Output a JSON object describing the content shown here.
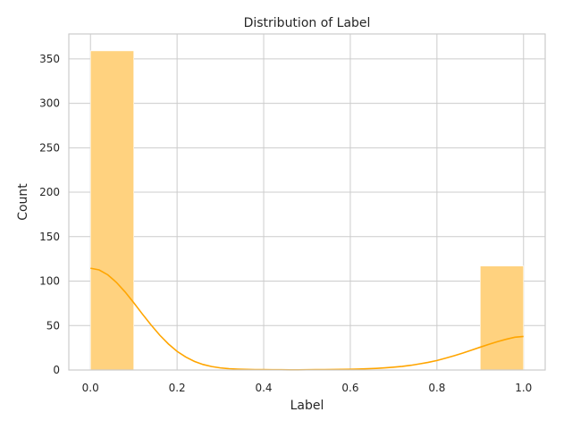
{
  "chart_data": {
    "type": "bar",
    "title": "Distribution of Label",
    "xlabel": "Label",
    "ylabel": "Count",
    "xlim": [
      -0.05,
      1.05
    ],
    "ylim": [
      0,
      378
    ],
    "x_ticks": [
      0.0,
      0.2,
      0.4,
      0.6,
      0.8,
      1.0
    ],
    "x_tick_labels": [
      "0.0",
      "0.2",
      "0.4",
      "0.6",
      "0.8",
      "1.0"
    ],
    "y_ticks": [
      0,
      50,
      100,
      150,
      200,
      250,
      300,
      350
    ],
    "y_tick_labels": [
      "0",
      "50",
      "100",
      "150",
      "200",
      "250",
      "300",
      "350"
    ],
    "grid": true,
    "bar_color": "#ffd27f",
    "line_color": "#ffa500",
    "bins": [
      {
        "x0": 0.0,
        "x1": 0.1,
        "count": 359
      },
      {
        "x0": 0.1,
        "x1": 0.2,
        "count": 0
      },
      {
        "x0": 0.2,
        "x1": 0.3,
        "count": 0
      },
      {
        "x0": 0.3,
        "x1": 0.4,
        "count": 0
      },
      {
        "x0": 0.4,
        "x1": 0.5,
        "count": 0
      },
      {
        "x0": 0.5,
        "x1": 0.6,
        "count": 0
      },
      {
        "x0": 0.6,
        "x1": 0.7,
        "count": 0
      },
      {
        "x0": 0.7,
        "x1": 0.8,
        "count": 0
      },
      {
        "x0": 0.8,
        "x1": 0.9,
        "count": 0
      },
      {
        "x0": 0.9,
        "x1": 1.0,
        "count": 117
      }
    ],
    "kde": {
      "x": [
        0.0,
        0.02,
        0.04,
        0.06,
        0.08,
        0.1,
        0.12,
        0.14,
        0.16,
        0.18,
        0.2,
        0.22,
        0.24,
        0.26,
        0.28,
        0.3,
        0.32,
        0.34,
        0.36,
        0.38,
        0.4,
        0.42,
        0.44,
        0.46,
        0.48,
        0.5,
        0.52,
        0.54,
        0.56,
        0.58,
        0.6,
        0.62,
        0.64,
        0.66,
        0.68,
        0.7,
        0.72,
        0.74,
        0.76,
        0.78,
        0.8,
        0.82,
        0.84,
        0.86,
        0.88,
        0.9,
        0.92,
        0.94,
        0.96,
        0.98,
        1.0
      ],
      "y": [
        114.5,
        112.6,
        107.1,
        98.5,
        87.8,
        75.6,
        62.9,
        50.6,
        39.2,
        29.3,
        21.0,
        14.6,
        9.7,
        6.2,
        3.9,
        2.4,
        1.5,
        1.0,
        0.7,
        0.5,
        0.4,
        0.3,
        0.3,
        0.2,
        0.2,
        0.3,
        0.4,
        0.5,
        0.6,
        0.7,
        0.8,
        1.1,
        1.4,
        1.8,
        2.4,
        3.2,
        4.1,
        5.3,
        6.9,
        8.6,
        10.7,
        13.3,
        16.1,
        19.1,
        22.4,
        25.7,
        28.9,
        31.9,
        34.6,
        36.9,
        37.8
      ]
    }
  }
}
